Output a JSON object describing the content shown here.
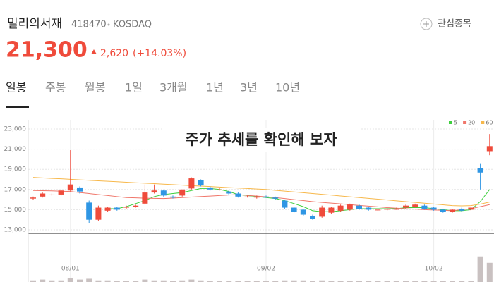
{
  "header": {
    "name": "밀리의서재",
    "code": "418470",
    "market": "KOSDAQ",
    "watch": "관심종목",
    "price": "21,300",
    "change": "2,620",
    "change_pct": "(+14.03%)"
  },
  "tabs": [
    "일봉",
    "주봉",
    "월봉",
    "1일",
    "3개월",
    "1년",
    "3년",
    "10년"
  ],
  "overlay": "주가 추세를 확인해 보자",
  "chart_data": {
    "type": "candlestick",
    "categories": [
      null,
      null,
      null,
      null,
      "08/01",
      null,
      null,
      null,
      null,
      null,
      null,
      null,
      null,
      null,
      null,
      null,
      null,
      null,
      null,
      null,
      null,
      null,
      null,
      null,
      null,
      "09/02",
      null,
      null,
      null,
      null,
      null,
      null,
      null,
      null,
      null,
      null,
      null,
      null,
      null,
      null,
      null,
      null,
      null,
      "10/02",
      null,
      null,
      null,
      null,
      null,
      null
    ],
    "open": [
      16100,
      16300,
      16500,
      16500,
      16900,
      17200,
      15700,
      14000,
      14900,
      15200,
      15200,
      15300,
      15600,
      16700,
      16900,
      16300,
      16400,
      17100,
      17900,
      17200,
      17000,
      16800,
      16600,
      16300,
      16200,
      16300,
      16200,
      15900,
      15200,
      15000,
      14400,
      14300,
      14700,
      14900,
      15000,
      15400,
      15200,
      15000,
      15000,
      15000,
      15200,
      15300,
      15400,
      15200,
      15000,
      14800,
      15100,
      15000,
      19100,
      20800
    ],
    "high": [
      16300,
      16700,
      16600,
      17000,
      20900,
      17300,
      15900,
      15400,
      15300,
      15300,
      15400,
      15500,
      17500,
      17500,
      17000,
      16400,
      17000,
      18200,
      18000,
      17300,
      17200,
      16900,
      16700,
      16400,
      16400,
      16400,
      16300,
      16000,
      15300,
      15100,
      14500,
      15400,
      15300,
      15500,
      15600,
      15500,
      15300,
      15100,
      15200,
      15200,
      15500,
      15600,
      15500,
      15300,
      15100,
      15100,
      15200,
      15300,
      19600,
      22500
    ],
    "low": [
      16000,
      16200,
      16400,
      16400,
      16800,
      16600,
      13700,
      13900,
      14800,
      14900,
      15100,
      15200,
      15500,
      16600,
      16300,
      16100,
      16300,
      17000,
      17300,
      16900,
      16900,
      16500,
      16200,
      16200,
      16100,
      16200,
      16000,
      15100,
      14700,
      14400,
      14000,
      14200,
      14600,
      14800,
      14900,
      15000,
      14900,
      14900,
      14900,
      15000,
      15100,
      15200,
      15000,
      14900,
      14700,
      14700,
      14800,
      14900,
      17000,
      20400
    ],
    "close": [
      16200,
      16600,
      16500,
      16900,
      17500,
      16800,
      14000,
      15200,
      15200,
      15000,
      15300,
      15400,
      16700,
      16900,
      16400,
      16200,
      17000,
      18100,
      17400,
      17000,
      17000,
      16600,
      16300,
      16300,
      16300,
      16200,
      16100,
      15200,
      14800,
      14500,
      14100,
      15200,
      15200,
      15400,
      15500,
      15100,
      15000,
      15000,
      15100,
      15100,
      15400,
      15500,
      15100,
      15000,
      14800,
      15000,
      14900,
      15200,
      18680,
      21300
    ],
    "up_color": "#ef4b3b",
    "down_color": "#2f96e4",
    "series": [
      {
        "name": "5",
        "color": "#3ecf3e",
        "values": [
          null,
          null,
          null,
          null,
          null,
          null,
          null,
          null,
          15100,
          15100,
          15300,
          15600,
          15900,
          16300,
          16500,
          16600,
          16700,
          16900,
          17100,
          17100,
          17000,
          16800,
          16500,
          16400,
          16300,
          16200,
          16100,
          15900,
          15600,
          15300,
          14900,
          14800,
          14800,
          14900,
          15000,
          15100,
          15100,
          15100,
          15100,
          15100,
          15200,
          15200,
          15200,
          15100,
          15000,
          14900,
          14900,
          15000,
          15800,
          17000
        ]
      },
      {
        "name": "20",
        "color": "#f0766a",
        "values": [
          16900,
          16880,
          16860,
          16830,
          16800,
          16700,
          16600,
          16500,
          16400,
          16300,
          16200,
          16170,
          16140,
          16120,
          16100,
          16150,
          16200,
          16250,
          16300,
          16350,
          16400,
          16450,
          16500,
          16420,
          16350,
          16280,
          16200,
          16100,
          16000,
          15900,
          15800,
          15720,
          15650,
          15580,
          15500,
          15420,
          15350,
          15280,
          15200,
          15150,
          15100,
          15050,
          15000,
          14970,
          14940,
          14900,
          15000,
          15100,
          15300,
          15500
        ]
      },
      {
        "name": "60",
        "color": "#f7b84b",
        "values": [
          18200,
          18150,
          18100,
          18060,
          18010,
          17960,
          17910,
          17860,
          17820,
          17770,
          17720,
          17670,
          17620,
          17580,
          17530,
          17480,
          17430,
          17380,
          17340,
          17290,
          17240,
          17190,
          17140,
          17100,
          17050,
          17000,
          16920,
          16840,
          16760,
          16680,
          16600,
          16520,
          16440,
          16360,
          16280,
          16200,
          16120,
          16040,
          15960,
          15880,
          15800,
          15720,
          15640,
          15560,
          15480,
          15400,
          15380,
          15400,
          15550,
          15750
        ]
      }
    ],
    "volume": [
      2,
      3,
      2,
      2,
      5,
      3,
      4,
      2,
      2,
      1,
      1,
      1,
      3,
      2,
      2,
      1,
      2,
      3,
      2,
      1,
      1,
      1,
      1,
      1,
      1,
      1,
      1,
      2,
      2,
      2,
      1,
      2,
      1,
      1,
      1,
      1,
      1,
      1,
      1,
      1,
      1,
      1,
      1,
      1,
      1,
      1,
      1,
      1,
      32,
      24
    ],
    "volume_color": "#c9c1c1",
    "volume_lim": [
      0,
      60
    ],
    "ylim": [
      13000,
      23000
    ],
    "yticks": [
      {
        "value": 13000,
        "label": "13,000"
      },
      {
        "value": 15000,
        "label": "15,000"
      },
      {
        "value": 17000,
        "label": "17,000"
      },
      {
        "value": 19000,
        "label": "19,000"
      },
      {
        "value": 21000,
        "label": "21,000"
      },
      {
        "value": 23000,
        "label": "23,000"
      }
    ],
    "grid": true
  }
}
